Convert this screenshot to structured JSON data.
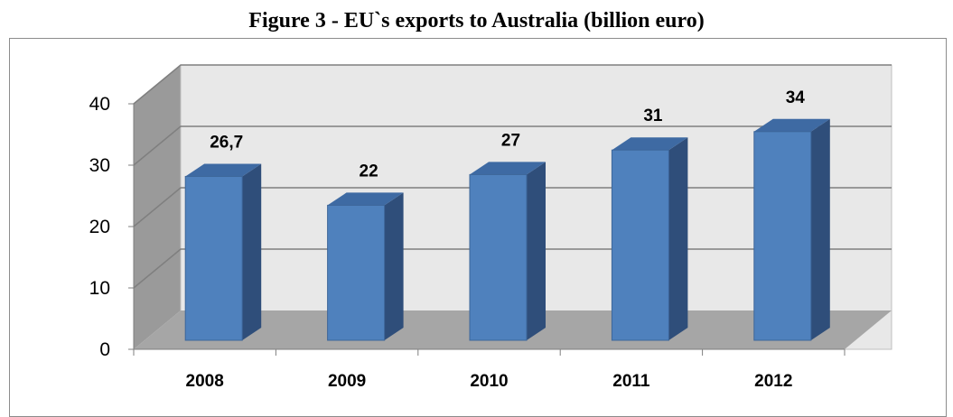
{
  "chart_data": {
    "type": "bar",
    "title": "Figure 3 - EU`s exports to Australia (billion euro)",
    "categories": [
      "2008",
      "2009",
      "2010",
      "2011",
      "2012"
    ],
    "values": [
      26.7,
      22,
      27,
      31,
      34
    ],
    "data_labels": [
      "26,7",
      "22",
      "27",
      "31",
      "34"
    ],
    "yticks": [
      "0",
      "10",
      "20",
      "30",
      "40"
    ],
    "ylim": [
      0,
      40
    ],
    "grid": true,
    "legend": "none",
    "style": "3d-column",
    "colors": {
      "bar_front": "#4f81bd",
      "bar_side": "#2f4e7a",
      "bar_top": "#3e6aa3",
      "back_wall": "#e8e8e8",
      "side_wall": "#9a9a9a",
      "floor": "#a6a6a6",
      "gridline": "#7f7f7f"
    }
  }
}
